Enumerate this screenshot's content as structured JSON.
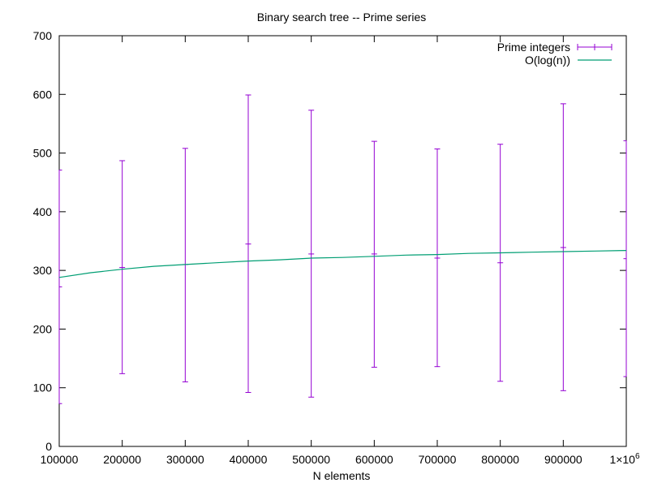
{
  "chart_data": {
    "type": "line",
    "title": "Binary search tree -- Prime series",
    "xlabel": "N elements",
    "ylabel": "",
    "xlim": [
      100000,
      1000000
    ],
    "ylim": [
      0,
      700
    ],
    "grid": false,
    "legend_position": "top-right",
    "x_ticks": [
      {
        "value": 100000,
        "label": "100000"
      },
      {
        "value": 200000,
        "label": "200000"
      },
      {
        "value": 300000,
        "label": "300000"
      },
      {
        "value": 400000,
        "label": "400000"
      },
      {
        "value": 500000,
        "label": "500000"
      },
      {
        "value": 600000,
        "label": "600000"
      },
      {
        "value": 700000,
        "label": "700000"
      },
      {
        "value": 800000,
        "label": "800000"
      },
      {
        "value": 900000,
        "label": "900000"
      }
    ],
    "x_tick_last": {
      "value": 1000000,
      "base": "1×10",
      "exp": "6"
    },
    "y_ticks": [
      {
        "value": 0,
        "label": "0"
      },
      {
        "value": 100,
        "label": "100"
      },
      {
        "value": 200,
        "label": "200"
      },
      {
        "value": 300,
        "label": "300"
      },
      {
        "value": 400,
        "label": "400"
      },
      {
        "value": 500,
        "label": "500"
      },
      {
        "value": 600,
        "label": "600"
      },
      {
        "value": 700,
        "label": "700"
      }
    ],
    "series": [
      {
        "name": "Prime integers",
        "kind": "errorbars",
        "color": "#9400d3",
        "points": [
          {
            "x": 100000,
            "y": 272,
            "ylow": 73,
            "yhigh": 471
          },
          {
            "x": 200000,
            "y": 305,
            "ylow": 124,
            "yhigh": 487
          },
          {
            "x": 300000,
            "y": 310,
            "ylow": 110,
            "yhigh": 508
          },
          {
            "x": 400000,
            "y": 345,
            "ylow": 92,
            "yhigh": 599
          },
          {
            "x": 500000,
            "y": 328,
            "ylow": 84,
            "yhigh": 573
          },
          {
            "x": 600000,
            "y": 328,
            "ylow": 135,
            "yhigh": 520
          },
          {
            "x": 700000,
            "y": 321,
            "ylow": 136,
            "yhigh": 507
          },
          {
            "x": 800000,
            "y": 313,
            "ylow": 111,
            "yhigh": 515
          },
          {
            "x": 900000,
            "y": 339,
            "ylow": 95,
            "yhigh": 584
          },
          {
            "x": 1000000,
            "y": 320,
            "ylow": 119,
            "yhigh": 521
          }
        ]
      },
      {
        "name": "O(log(n))",
        "kind": "line",
        "color": "#009e73",
        "points": [
          {
            "x": 100000,
            "y": 288
          },
          {
            "x": 150000,
            "y": 296
          },
          {
            "x": 200000,
            "y": 302
          },
          {
            "x": 250000,
            "y": 307
          },
          {
            "x": 300000,
            "y": 310
          },
          {
            "x": 350000,
            "y": 313
          },
          {
            "x": 400000,
            "y": 316
          },
          {
            "x": 450000,
            "y": 318
          },
          {
            "x": 500000,
            "y": 321
          },
          {
            "x": 550000,
            "y": 322
          },
          {
            "x": 600000,
            "y": 324
          },
          {
            "x": 650000,
            "y": 326
          },
          {
            "x": 700000,
            "y": 327
          },
          {
            "x": 750000,
            "y": 329
          },
          {
            "x": 800000,
            "y": 330
          },
          {
            "x": 850000,
            "y": 331
          },
          {
            "x": 900000,
            "y": 332
          },
          {
            "x": 950000,
            "y": 333
          },
          {
            "x": 1000000,
            "y": 334
          }
        ]
      }
    ]
  }
}
